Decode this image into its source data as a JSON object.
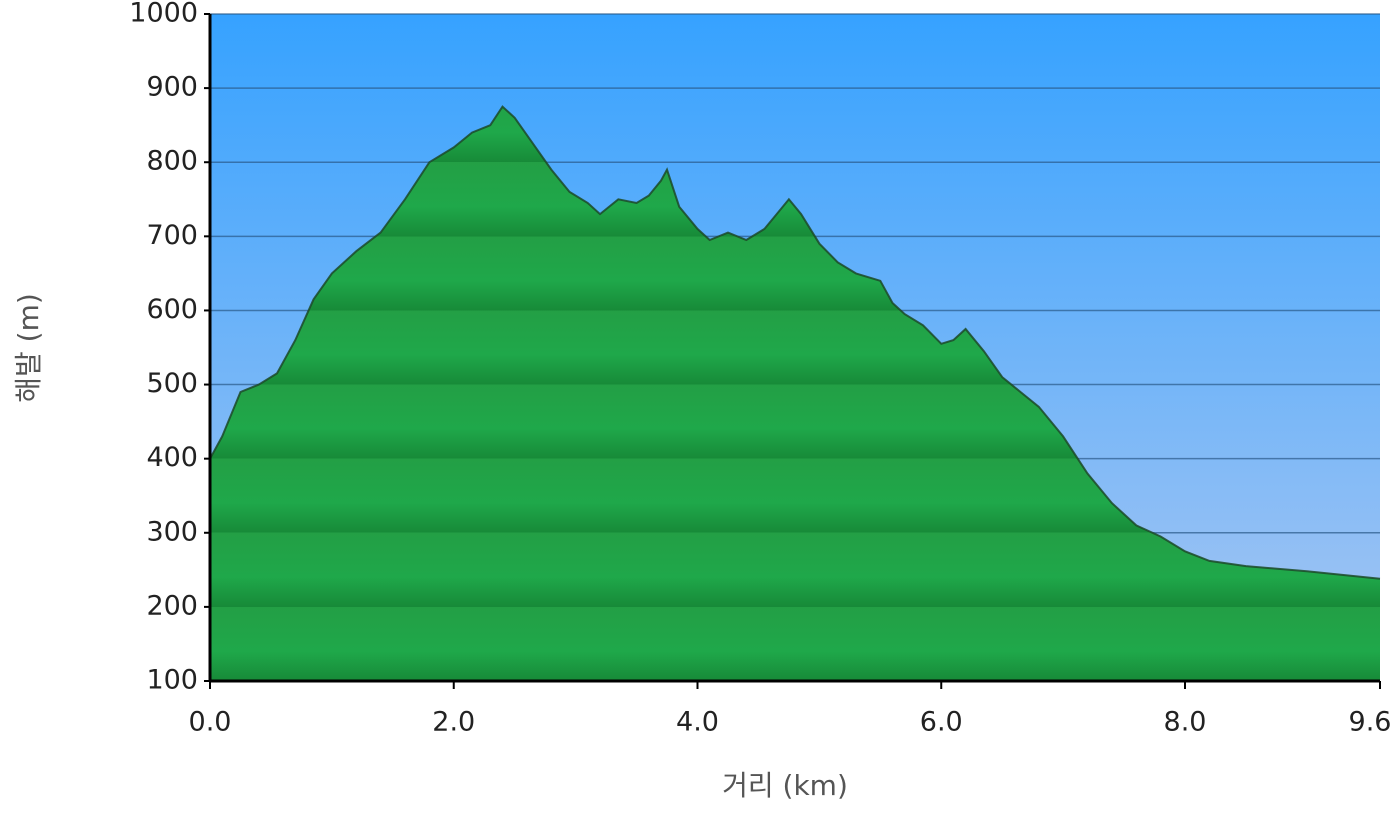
{
  "chart_data": {
    "type": "area",
    "xlabel": "거리 (km)",
    "ylabel": "해발 (m)",
    "x": [
      0.0,
      0.1,
      0.25,
      0.4,
      0.55,
      0.7,
      0.85,
      1.0,
      1.2,
      1.4,
      1.6,
      1.8,
      2.0,
      2.15,
      2.3,
      2.4,
      2.5,
      2.65,
      2.8,
      2.95,
      3.1,
      3.2,
      3.35,
      3.5,
      3.6,
      3.7,
      3.75,
      3.85,
      4.0,
      4.1,
      4.25,
      4.4,
      4.55,
      4.65,
      4.75,
      4.85,
      5.0,
      5.15,
      5.3,
      5.5,
      5.6,
      5.7,
      5.85,
      6.0,
      6.1,
      6.2,
      6.35,
      6.5,
      6.65,
      6.8,
      7.0,
      7.2,
      7.4,
      7.6,
      7.8,
      8.0,
      8.2,
      8.5,
      9.0,
      9.6
    ],
    "values": [
      400,
      430,
      490,
      500,
      515,
      560,
      615,
      650,
      680,
      705,
      750,
      800,
      820,
      840,
      850,
      875,
      860,
      825,
      790,
      760,
      745,
      730,
      750,
      745,
      755,
      775,
      790,
      740,
      710,
      695,
      705,
      695,
      710,
      730,
      750,
      730,
      690,
      665,
      650,
      640,
      610,
      595,
      580,
      555,
      560,
      575,
      545,
      510,
      490,
      470,
      430,
      380,
      340,
      310,
      295,
      275,
      262,
      255,
      248,
      238
    ],
    "color": "#1fa84a",
    "xlim": [
      0,
      9.6
    ],
    "ylim": [
      100,
      1000
    ],
    "xticks": [
      {
        "value": 0,
        "label": "0.0"
      },
      {
        "value": 2,
        "label": "2.0"
      },
      {
        "value": 4,
        "label": "4.0"
      },
      {
        "value": 6,
        "label": "6.0"
      },
      {
        "value": 8,
        "label": "8.0"
      },
      9.6
    ],
    "yticks": [
      100,
      200,
      300,
      400,
      500,
      600,
      700,
      800,
      900,
      1000
    ],
    "grid": true
  }
}
